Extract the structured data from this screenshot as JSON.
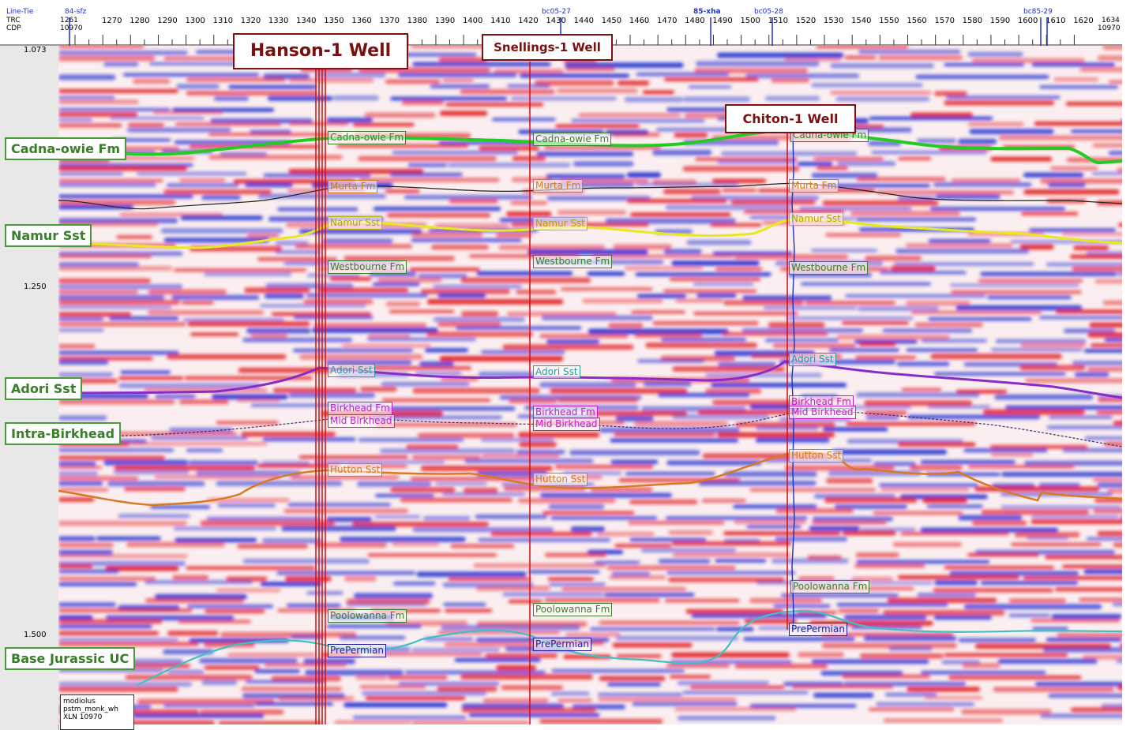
{
  "header": {
    "line_tie": "Line-Tie",
    "trc": "TRC",
    "cdp": "CDP",
    "tie_lines": [
      {
        "label": "84-sfz"
      },
      {
        "label": "bc05-27"
      },
      {
        "label": "85-xha"
      },
      {
        "label": "bc05-28"
      },
      {
        "label": "bc85-29"
      }
    ],
    "first_trc": "1261",
    "first_cdp": "10970",
    "last_trc": "1634",
    "last_cdp": "10970",
    "trc_ticks": [
      "1270",
      "1280",
      "1290",
      "1300",
      "1310",
      "1320",
      "1330",
      "1340",
      "1350",
      "1360",
      "1370",
      "1380",
      "1390",
      "1400",
      "1410",
      "1420",
      "1430",
      "1440",
      "1450",
      "1460",
      "1470",
      "1480",
      "1490",
      "1500",
      "1510",
      "1520",
      "1530",
      "1540",
      "1550",
      "1560",
      "1570",
      "1580",
      "1590",
      "1600",
      "1610",
      "1620"
    ]
  },
  "time_axis": {
    "labels": [
      "1.073",
      "1.250",
      "1.500"
    ]
  },
  "horizon_labels": [
    {
      "text": "Cadna-owie Fm"
    },
    {
      "text": "Namur Sst"
    },
    {
      "text": "Adori Sst"
    },
    {
      "text": "Intra-Birkhead"
    },
    {
      "text": "Base Jurassic UC"
    }
  ],
  "wells": [
    {
      "name": "Hanson-1 Well"
    },
    {
      "name": "Snellings-1 Well"
    },
    {
      "name": "Chiton-1 Well"
    }
  ],
  "picks": {
    "hanson": [
      "Cadna-owie Fm",
      "Murta Fm",
      "Namur Sst",
      "Westbourne Fm",
      "Adori Sst",
      "Birkhead Fm",
      "Mid Birkhead",
      "Hutton Sst",
      "Poolowanna Fm",
      "PrePermian"
    ],
    "snellings": [
      "Cadna-owie Fm",
      "Murta Fm",
      "Namur Sst",
      "Westbourne Fm",
      "Adori Sst",
      "Birkhead Fm",
      "Mid Birkhead",
      "Hutton Sst",
      "Poolowanna Fm",
      "PrePermian"
    ],
    "chiton": [
      "Cadna-owie Fm",
      "Murta Fm",
      "Namur Sst",
      "Westbourne Fm",
      "Adori Sst",
      "Birkhead Fm",
      "Mid Birkhead",
      "Hutton Sst",
      "Poolowanna Fm",
      "PrePermian"
    ]
  },
  "info_box": {
    "line1": "modiolus",
    "line2": "pstm_monk_wh",
    "line3": "XLN 10970"
  },
  "colors": {
    "well_line": "#cc1010",
    "cadna": "#22cc22",
    "namur": "#e8e820",
    "adori": "#8a2cc8",
    "hutton": "#d87a20",
    "base_jurassic": "#40c0c0",
    "murta": "#222222",
    "intra_birkhead": "#333366"
  }
}
